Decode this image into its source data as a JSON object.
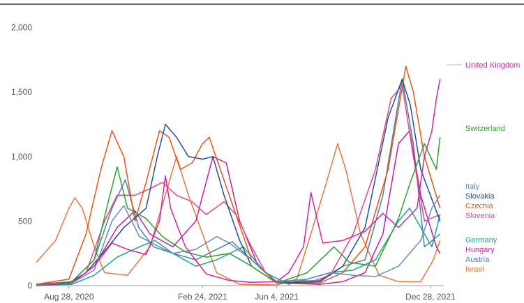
{
  "chart_data": {
    "type": "line",
    "title": "",
    "xlabel": "",
    "ylabel": "",
    "ylim": [
      0,
      2100
    ],
    "yticks": [
      "0",
      "500",
      "1,000",
      "1,500",
      "2,000"
    ],
    "ytick_values": [
      0,
      500,
      1000,
      1500,
      2000
    ],
    "xlim": [
      "2020-07-15",
      "2022-01-15"
    ],
    "xticks": [
      "Aug 28, 2020",
      "Feb 24, 2021",
      "Jun 4, 2021",
      "Dec 28, 2021"
    ],
    "xtick_dates": [
      "2020-08-28",
      "2021-02-24",
      "2021-06-04",
      "2021-12-28"
    ],
    "grid": false,
    "legend_placement": "right",
    "series": [
      {
        "name": "United Kingdom",
        "color": "#d6219c",
        "points": [
          [
            "2020-07-15",
            0
          ],
          [
            "2020-09-01",
            20
          ],
          [
            "2020-10-01",
            150
          ],
          [
            "2020-10-25",
            330
          ],
          [
            "2020-11-15",
            280
          ],
          [
            "2020-12-10",
            240
          ],
          [
            "2020-12-28",
            500
          ],
          [
            "2021-01-05",
            850
          ],
          [
            "2021-01-12",
            600
          ],
          [
            "2021-02-01",
            300
          ],
          [
            "2021-03-01",
            90
          ],
          [
            "2021-04-01",
            40
          ],
          [
            "2021-05-01",
            25
          ],
          [
            "2021-06-04",
            30
          ],
          [
            "2021-06-20",
            100
          ],
          [
            "2021-07-10",
            300
          ],
          [
            "2021-07-20",
            720
          ],
          [
            "2021-08-05",
            330
          ],
          [
            "2021-09-01",
            350
          ],
          [
            "2021-10-01",
            420
          ],
          [
            "2021-10-25",
            560
          ],
          [
            "2021-11-15",
            450
          ],
          [
            "2021-12-10",
            600
          ],
          [
            "2021-12-20",
            1000
          ],
          [
            "2021-12-30",
            1200
          ],
          [
            "2022-01-05",
            1450
          ],
          [
            "2022-01-10",
            1600
          ]
        ]
      },
      {
        "name": "Switzerland",
        "color": "#2ca02c",
        "points": [
          [
            "2020-07-15",
            10
          ],
          [
            "2020-09-01",
            30
          ],
          [
            "2020-10-01",
            200
          ],
          [
            "2020-10-20",
            650
          ],
          [
            "2020-11-01",
            920
          ],
          [
            "2020-11-15",
            600
          ],
          [
            "2020-12-10",
            520
          ],
          [
            "2021-01-01",
            380
          ],
          [
            "2021-02-01",
            260
          ],
          [
            "2021-03-01",
            220
          ],
          [
            "2021-04-01",
            250
          ],
          [
            "2021-05-01",
            150
          ],
          [
            "2021-06-04",
            20
          ],
          [
            "2021-07-15",
            100
          ],
          [
            "2021-08-20",
            300
          ],
          [
            "2021-09-10",
            180
          ],
          [
            "2021-10-15",
            150
          ],
          [
            "2021-11-15",
            520
          ],
          [
            "2021-12-01",
            800
          ],
          [
            "2021-12-20",
            1100
          ],
          [
            "2022-01-05",
            900
          ],
          [
            "2022-01-10",
            1150
          ]
        ]
      },
      {
        "name": "Italy",
        "color": "#6a8ab8",
        "points": [
          [
            "2020-07-15",
            5
          ],
          [
            "2020-09-01",
            20
          ],
          [
            "2020-10-01",
            120
          ],
          [
            "2020-10-25",
            500
          ],
          [
            "2020-11-10",
            620
          ],
          [
            "2020-12-01",
            380
          ],
          [
            "2020-12-28",
            300
          ],
          [
            "2021-01-15",
            250
          ],
          [
            "2021-02-15",
            280
          ],
          [
            "2021-03-15",
            380
          ],
          [
            "2021-04-01",
            330
          ],
          [
            "2021-05-01",
            200
          ],
          [
            "2021-06-04",
            30
          ],
          [
            "2021-07-15",
            50
          ],
          [
            "2021-08-15",
            100
          ],
          [
            "2021-09-15",
            80
          ],
          [
            "2021-10-15",
            70
          ],
          [
            "2021-11-15",
            150
          ],
          [
            "2021-12-15",
            350
          ],
          [
            "2021-12-30",
            600
          ],
          [
            "2022-01-10",
            700
          ]
        ]
      },
      {
        "name": "Slovakia",
        "color": "#1f4e9c",
        "points": [
          [
            "2020-07-15",
            5
          ],
          [
            "2020-08-28",
            20
          ],
          [
            "2020-09-20",
            100
          ],
          [
            "2020-10-20",
            300
          ],
          [
            "2020-11-10",
            450
          ],
          [
            "2020-12-10",
            600
          ],
          [
            "2020-12-25",
            1000
          ],
          [
            "2021-01-05",
            1250
          ],
          [
            "2021-01-20",
            1150
          ],
          [
            "2021-02-05",
            1000
          ],
          [
            "2021-02-24",
            980
          ],
          [
            "2021-03-10",
            1000
          ],
          [
            "2021-03-25",
            700
          ],
          [
            "2021-04-15",
            350
          ],
          [
            "2021-05-01",
            150
          ],
          [
            "2021-06-04",
            20
          ],
          [
            "2021-08-01",
            30
          ],
          [
            "2021-09-01",
            150
          ],
          [
            "2021-10-01",
            450
          ],
          [
            "2021-11-01",
            1300
          ],
          [
            "2021-11-20",
            1600
          ],
          [
            "2021-12-01",
            1400
          ],
          [
            "2021-12-15",
            900
          ],
          [
            "2022-01-10",
            500
          ]
        ]
      },
      {
        "name": "Czechia",
        "color": "#e6550d",
        "points": [
          [
            "2020-07-15",
            10
          ],
          [
            "2020-08-28",
            50
          ],
          [
            "2020-09-20",
            400
          ],
          [
            "2020-10-10",
            900
          ],
          [
            "2020-10-25",
            1200
          ],
          [
            "2020-11-10",
            1000
          ],
          [
            "2020-11-25",
            500
          ],
          [
            "2020-12-10",
            800
          ],
          [
            "2020-12-28",
            1200
          ],
          [
            "2021-01-10",
            1150
          ],
          [
            "2021-01-25",
            900
          ],
          [
            "2021-02-10",
            950
          ],
          [
            "2021-02-24",
            1100
          ],
          [
            "2021-03-05",
            1150
          ],
          [
            "2021-03-20",
            900
          ],
          [
            "2021-04-10",
            550
          ],
          [
            "2021-05-01",
            200
          ],
          [
            "2021-06-04",
            20
          ],
          [
            "2021-08-01",
            20
          ],
          [
            "2021-09-01",
            100
          ],
          [
            "2021-10-01",
            300
          ],
          [
            "2021-11-01",
            900
          ],
          [
            "2021-11-25",
            1700
          ],
          [
            "2021-12-05",
            1500
          ],
          [
            "2021-12-20",
            1000
          ],
          [
            "2022-01-10",
            600
          ]
        ]
      },
      {
        "name": "Slovenia",
        "color": "#e8467c",
        "points": [
          [
            "2020-07-15",
            5
          ],
          [
            "2020-08-28",
            20
          ],
          [
            "2020-09-20",
            100
          ],
          [
            "2020-10-15",
            500
          ],
          [
            "2020-11-01",
            700
          ],
          [
            "2020-11-25",
            700
          ],
          [
            "2020-12-15",
            750
          ],
          [
            "2021-01-01",
            800
          ],
          [
            "2021-01-20",
            700
          ],
          [
            "2021-02-10",
            650
          ],
          [
            "2021-03-01",
            550
          ],
          [
            "2021-03-25",
            650
          ],
          [
            "2021-04-10",
            550
          ],
          [
            "2021-05-01",
            300
          ],
          [
            "2021-05-20",
            100
          ],
          [
            "2021-06-04",
            20
          ],
          [
            "2021-07-15",
            20
          ],
          [
            "2021-08-15",
            80
          ],
          [
            "2021-09-15",
            400
          ],
          [
            "2021-10-15",
            900
          ],
          [
            "2021-11-05",
            1450
          ],
          [
            "2021-11-20",
            1550
          ],
          [
            "2021-12-05",
            1000
          ],
          [
            "2021-12-20",
            500
          ],
          [
            "2022-01-10",
            550
          ]
        ]
      },
      {
        "name": "Germany",
        "color": "#17a589",
        "points": [
          [
            "2020-07-15",
            2
          ],
          [
            "2020-09-01",
            10
          ],
          [
            "2020-10-01",
            80
          ],
          [
            "2020-11-01",
            220
          ],
          [
            "2020-12-01",
            300
          ],
          [
            "2020-12-22",
            350
          ],
          [
            "2021-01-15",
            250
          ],
          [
            "2021-02-15",
            150
          ],
          [
            "2021-03-15",
            200
          ],
          [
            "2021-04-20",
            300
          ],
          [
            "2021-05-20",
            100
          ],
          [
            "2021-06-20",
            10
          ],
          [
            "2021-08-15",
            100
          ],
          [
            "2021-09-15",
            120
          ],
          [
            "2021-10-15",
            200
          ],
          [
            "2021-11-15",
            500
          ],
          [
            "2021-11-30",
            600
          ],
          [
            "2021-12-15",
            450
          ],
          [
            "2021-12-30",
            300
          ],
          [
            "2022-01-10",
            550
          ]
        ]
      },
      {
        "name": "Hungary",
        "color": "#c21e9a",
        "points": [
          [
            "2020-07-15",
            2
          ],
          [
            "2020-09-01",
            20
          ],
          [
            "2020-10-01",
            150
          ],
          [
            "2020-11-01",
            450
          ],
          [
            "2020-11-25",
            580
          ],
          [
            "2020-12-15",
            400
          ],
          [
            "2021-01-15",
            300
          ],
          [
            "2021-02-15",
            500
          ],
          [
            "2021-03-10",
            1000
          ],
          [
            "2021-03-28",
            950
          ],
          [
            "2021-04-15",
            500
          ],
          [
            "2021-05-10",
            150
          ],
          [
            "2021-06-04",
            20
          ],
          [
            "2021-08-01",
            10
          ],
          [
            "2021-09-01",
            30
          ],
          [
            "2021-10-01",
            100
          ],
          [
            "2021-10-25",
            400
          ],
          [
            "2021-11-15",
            1100
          ],
          [
            "2021-11-30",
            1200
          ],
          [
            "2021-12-15",
            700
          ],
          [
            "2022-01-05",
            300
          ],
          [
            "2022-01-10",
            250
          ]
        ]
      },
      {
        "name": "Austria",
        "color": "#4a7fa8",
        "points": [
          [
            "2020-07-15",
            5
          ],
          [
            "2020-09-01",
            30
          ],
          [
            "2020-10-01",
            200
          ],
          [
            "2020-10-25",
            600
          ],
          [
            "2020-11-12",
            820
          ],
          [
            "2020-11-30",
            450
          ],
          [
            "2020-12-20",
            300
          ],
          [
            "2021-01-15",
            250
          ],
          [
            "2021-02-15",
            200
          ],
          [
            "2021-03-15",
            280
          ],
          [
            "2021-04-05",
            340
          ],
          [
            "2021-05-01",
            200
          ],
          [
            "2021-06-04",
            30
          ],
          [
            "2021-08-01",
            40
          ],
          [
            "2021-09-01",
            150
          ],
          [
            "2021-10-01",
            200
          ],
          [
            "2021-10-25",
            700
          ],
          [
            "2021-11-20",
            1600
          ],
          [
            "2021-12-05",
            1100
          ],
          [
            "2021-12-20",
            300
          ],
          [
            "2022-01-10",
            400
          ]
        ]
      },
      {
        "name": "Israel",
        "color": "#e87537",
        "points": [
          [
            "2020-07-15",
            180
          ],
          [
            "2020-08-10",
            350
          ],
          [
            "2020-08-28",
            600
          ],
          [
            "2020-09-05",
            680
          ],
          [
            "2020-09-15",
            600
          ],
          [
            "2020-10-01",
            300
          ],
          [
            "2020-10-15",
            100
          ],
          [
            "2020-11-15",
            80
          ],
          [
            "2020-12-15",
            300
          ],
          [
            "2021-01-10",
            800
          ],
          [
            "2021-01-20",
            1000
          ],
          [
            "2021-02-05",
            700
          ],
          [
            "2021-02-24",
            400
          ],
          [
            "2021-03-15",
            100
          ],
          [
            "2021-04-15",
            10
          ],
          [
            "2021-06-04",
            5
          ],
          [
            "2021-07-01",
            50
          ],
          [
            "2021-07-20",
            400
          ],
          [
            "2021-08-10",
            800
          ],
          [
            "2021-08-25",
            1100
          ],
          [
            "2021-09-05",
            900
          ],
          [
            "2021-09-25",
            400
          ],
          [
            "2021-10-20",
            80
          ],
          [
            "2021-11-15",
            30
          ],
          [
            "2021-12-15",
            30
          ],
          [
            "2022-01-01",
            200
          ],
          [
            "2022-01-10",
            350
          ]
        ]
      }
    ]
  }
}
